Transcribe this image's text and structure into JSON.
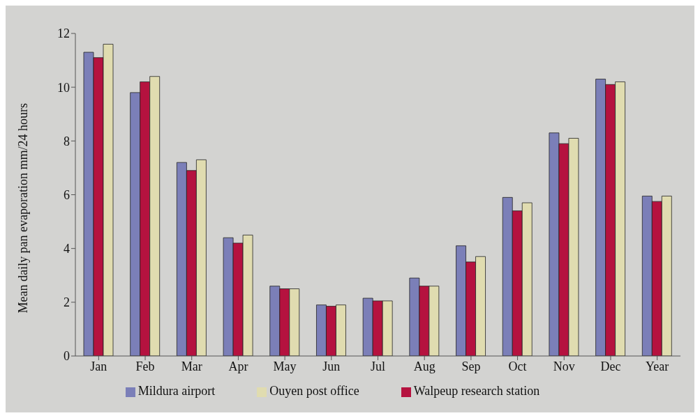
{
  "chart_data": {
    "type": "bar",
    "ylabel": "Mean daily pan evaporation mm/24 hours",
    "categories": [
      "Jan",
      "Feb",
      "Mar",
      "Apr",
      "May",
      "Jun",
      "Jul",
      "Aug",
      "Sep",
      "Oct",
      "Nov",
      "Dec",
      "Year"
    ],
    "series": [
      {
        "name": "Mildura airport",
        "color": "#7b7fb8",
        "values": [
          11.3,
          9.8,
          7.2,
          4.4,
          2.6,
          1.9,
          2.15,
          2.9,
          4.1,
          5.9,
          8.3,
          10.3,
          5.95
        ]
      },
      {
        "name": "Walpeup research station",
        "color": "#b5123f",
        "values": [
          11.1,
          10.2,
          6.9,
          4.2,
          2.5,
          1.85,
          2.05,
          2.6,
          3.5,
          5.4,
          7.9,
          10.1,
          5.75
        ]
      },
      {
        "name": "Ouyen post office",
        "color": "#e0dcb0",
        "values": [
          11.6,
          10.4,
          7.3,
          4.5,
          2.5,
          1.9,
          2.05,
          2.6,
          3.7,
          5.7,
          8.1,
          10.2,
          5.95
        ]
      }
    ],
    "ylim": [
      0,
      12
    ],
    "yticks": [
      0,
      2,
      4,
      6,
      8,
      10,
      12
    ],
    "grid": false,
    "legend": "bottom"
  }
}
